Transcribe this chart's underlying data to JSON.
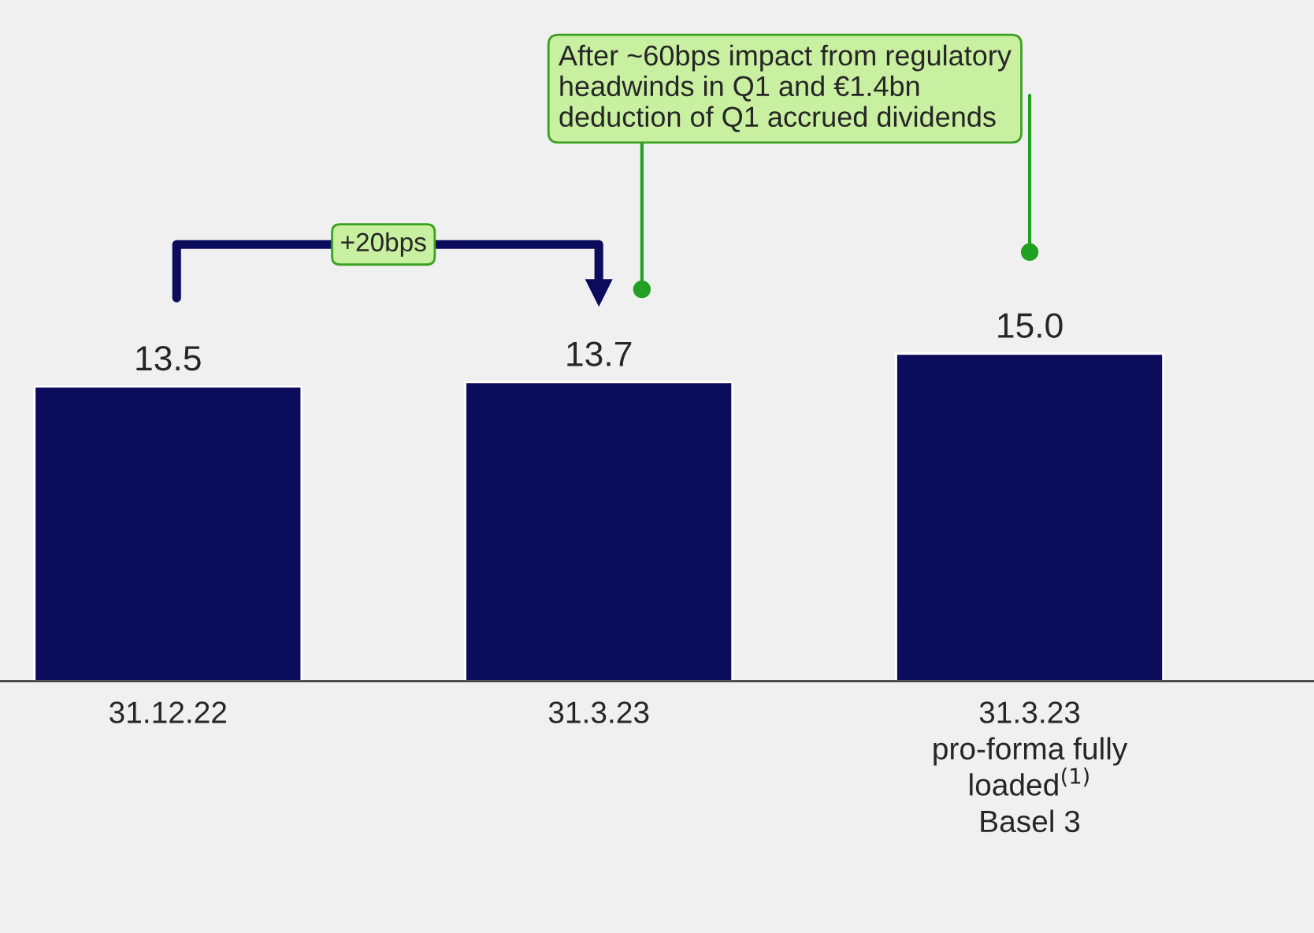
{
  "chart_data": {
    "type": "bar",
    "categories": [
      "31.12.22",
      "31.3.23",
      "31.3.23\npro-forma fully\nloaded$^{(1)}$\nBasel 3"
    ],
    "values": [
      13.5,
      13.7,
      15.0
    ],
    "color": "#0c0c5c",
    "value_labels": [
      "13.5",
      "13.7",
      "15.0"
    ],
    "annotations": [
      "+20bps",
      "After ~60bps impact from regulatory\nheadwinds in Q1 and €1.4bn\ndeduction of Q1 accrued dividends"
    ]
  }
}
